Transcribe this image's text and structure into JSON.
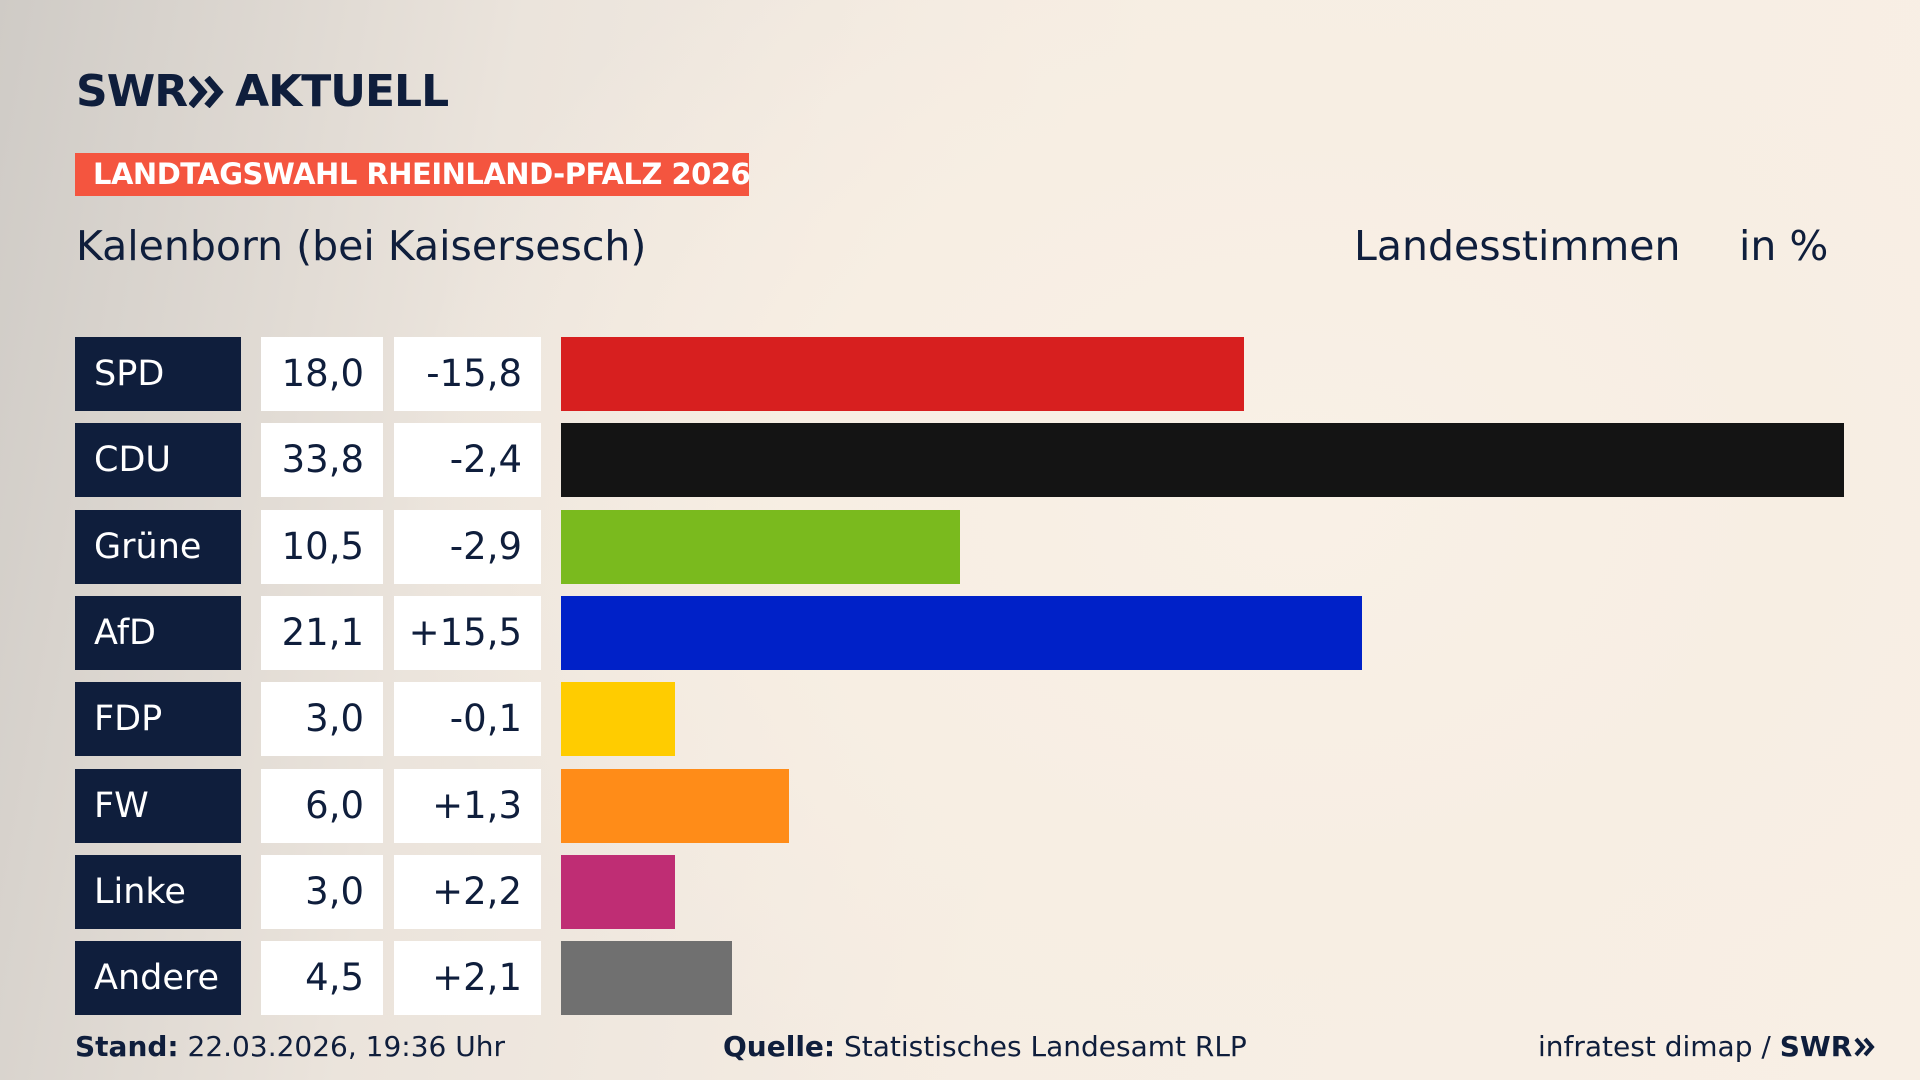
{
  "header": {
    "brand": "SWR",
    "section": "AKTUELL",
    "tag": "LANDTAGSWAHL RHEINLAND-PFALZ 2026",
    "place": "Kalenborn (bei Kaisersesch)",
    "measure": "Landesstimmen",
    "unit": "in %"
  },
  "chart_data": {
    "type": "bar",
    "orientation": "horizontal",
    "categories": [
      "SPD",
      "CDU",
      "Grüne",
      "AfD",
      "FDP",
      "FW",
      "Linke",
      "Andere"
    ],
    "values": [
      18.0,
      33.8,
      10.5,
      21.1,
      3.0,
      6.0,
      3.0,
      4.5
    ],
    "value_labels": [
      "18,0",
      "33,8",
      "10,5",
      "21,1",
      "3,0",
      "6,0",
      "3,0",
      "4,5"
    ],
    "changes": [
      "-15,8",
      "-2,4",
      "-2,9",
      "+15,5",
      "-0,1",
      "+1,3",
      "+2,2",
      "+2,1"
    ],
    "colors": [
      "#d71f1f",
      "#141414",
      "#7aba1e",
      "#0021c8",
      "#ffcc00",
      "#ff8c18",
      "#bf2d74",
      "#707070"
    ]
  },
  "footer": {
    "date_label": "Stand:",
    "date": "22.03.2026, 19:36 Uhr",
    "source_label": "Quelle:",
    "source": "Statistisches Landesamt RLP",
    "credit": "infratest dimap /",
    "credit_brand": "SWR"
  }
}
